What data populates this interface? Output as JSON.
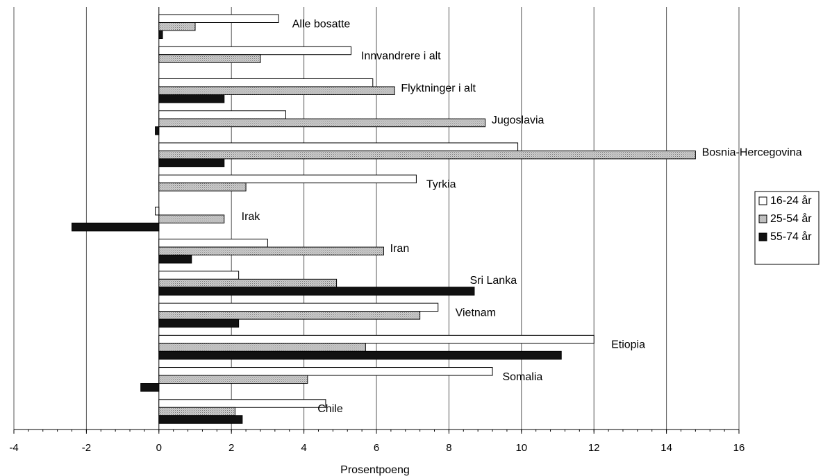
{
  "chart_data": {
    "type": "bar",
    "orientation": "horizontal",
    "title": "",
    "xlabel": "Prosentpoeng",
    "ylabel": "",
    "xlim": [
      -4,
      16
    ],
    "x_ticks": [
      -4,
      -2,
      0,
      2,
      4,
      6,
      8,
      10,
      12,
      14,
      16
    ],
    "grid": "vertical",
    "legend_position": "right",
    "categories": [
      "Alle bosatte",
      "Innvandrere i alt",
      "Flyktninger i alt",
      "Jugoslavia",
      "Bosnia-Hercegovina",
      "Tyrkia",
      "Irak",
      "Iran",
      "Sri Lanka",
      "Vietnam",
      "Etiopia",
      "Somalia",
      "Chile"
    ],
    "series": [
      {
        "name": "16-24 år",
        "color": "#ffffff",
        "fill": "white",
        "values": [
          3.3,
          5.3,
          5.9,
          3.5,
          9.9,
          7.1,
          -0.1,
          3.0,
          2.2,
          7.7,
          12.0,
          9.2,
          4.6
        ]
      },
      {
        "name": "25-54 år",
        "color": "#c8c8c8",
        "fill": "dotted-gray",
        "values": [
          1.0,
          2.8,
          6.5,
          9.0,
          14.8,
          2.4,
          1.8,
          6.2,
          4.9,
          7.2,
          5.7,
          4.1,
          2.1
        ]
      },
      {
        "name": "55-74 år",
        "color": "#111111",
        "fill": "black",
        "values": [
          0.1,
          0.0,
          1.8,
          -0.1,
          1.8,
          0.0,
          -2.4,
          0.9,
          8.7,
          2.2,
          11.1,
          -0.5,
          2.3
        ]
      }
    ],
    "label_anchor_values": [
      3.6,
      5.5,
      6.6,
      9.1,
      14.9,
      7.3,
      2.2,
      6.3,
      8.5,
      8.1,
      12.4,
      9.4,
      4.3
    ]
  }
}
